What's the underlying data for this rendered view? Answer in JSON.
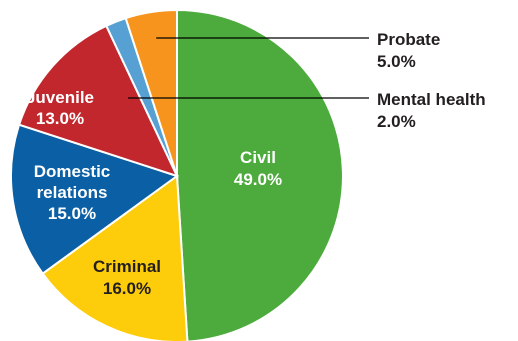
{
  "chart_data": {
    "type": "pie",
    "title": "",
    "start_angle_deg": 0,
    "direction": "clockwise",
    "slices": [
      {
        "label": "Civil",
        "label_line2": "",
        "value": 49.0,
        "value_label": "49.0%",
        "color": "#4daa3c",
        "text_color": "#ffffff",
        "label_position": "inside"
      },
      {
        "label": "Criminal",
        "label_line2": "",
        "value": 16.0,
        "value_label": "16.0%",
        "color": "#fdcc0a",
        "text_color": "#231f20",
        "label_position": "inside"
      },
      {
        "label": "Domestic",
        "label_line2": "relations",
        "value": 15.0,
        "value_label": "15.0%",
        "color": "#0b5fa5",
        "text_color": "#ffffff",
        "label_position": "inside"
      },
      {
        "label": "Juvenile",
        "label_line2": "",
        "value": 13.0,
        "value_label": "13.0%",
        "color": "#c1272d",
        "text_color": "#ffffff",
        "label_position": "inside"
      },
      {
        "label": "Mental health",
        "label_line2": "",
        "value": 2.0,
        "value_label": "2.0%",
        "color": "#56a0d3",
        "text_color": "#231f20",
        "label_position": "outside"
      },
      {
        "label": "Probate",
        "label_line2": "",
        "value": 5.0,
        "value_label": "5.0%",
        "color": "#f7941d",
        "text_color": "#231f20",
        "label_position": "outside"
      }
    ]
  }
}
